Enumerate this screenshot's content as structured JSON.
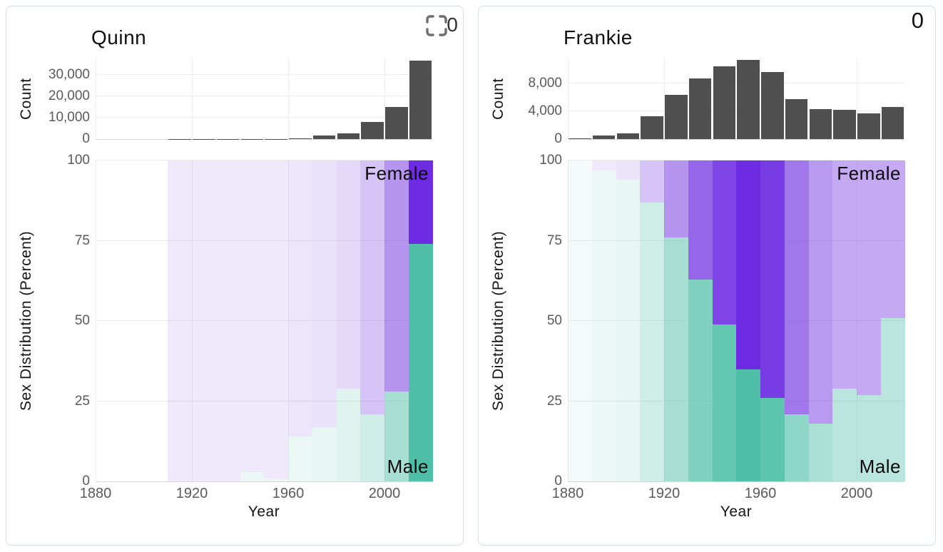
{
  "colors": {
    "female_base": "#6D2BE2",
    "male_base": "#4FBFA7",
    "hist_bar": "#4F4F4F",
    "grid": "#EBEBEB",
    "tick_text": "#5A5A5A",
    "label_text": "#141414"
  },
  "panels": [
    {
      "title": "Quinn",
      "badge_icon": "crop-marks-icon",
      "badge_text": "0",
      "count_label": "Count",
      "dist_label": "Sex Distribution (Percent)",
      "x_label": "Year",
      "female_label": "Female",
      "male_label": "Male"
    },
    {
      "title": "Frankie",
      "badge_icon": null,
      "badge_text": "0",
      "count_label": "Count",
      "dist_label": "Sex Distribution (Percent)",
      "x_label": "Year",
      "female_label": "Female",
      "male_label": "Male"
    }
  ],
  "chart_data": [
    {
      "panel": "Quinn",
      "type": "bar",
      "title": "Quinn — Count by decade",
      "ylabel": "Count",
      "x_domain": [
        1880,
        2020
      ],
      "bin_width_years": 10,
      "bin_starts": [
        1910,
        1920,
        1930,
        1940,
        1950,
        1960,
        1970,
        1980,
        1990,
        2000,
        2010
      ],
      "values": [
        30,
        40,
        60,
        120,
        150,
        500,
        1500,
        2700,
        8000,
        15000,
        36500
      ],
      "ylim": [
        0,
        37500
      ],
      "yticks": [
        0,
        10000,
        20000,
        30000
      ],
      "ytick_labels": [
        "0",
        "10,000",
        "20,000",
        "30,000"
      ],
      "xticks": [
        1880,
        1920,
        1960,
        2000
      ],
      "grid": true
    },
    {
      "panel": "Quinn",
      "type": "stacked-bar-normalized",
      "title": "Quinn — Sex Distribution (Percent)",
      "ylabel": "Sex Distribution (Percent)",
      "xlabel": "Year",
      "x_domain": [
        1880,
        2020
      ],
      "bin_width_years": 10,
      "bin_starts": [
        1910,
        1920,
        1930,
        1940,
        1950,
        1960,
        1970,
        1980,
        1990,
        2000,
        2010
      ],
      "series": [
        {
          "name": "Male",
          "position": "bottom",
          "values_pct": [
            0,
            0,
            0,
            3,
            1,
            14,
            17,
            29,
            21,
            28,
            74
          ]
        },
        {
          "name": "Female",
          "position": "top",
          "values_pct": [
            100,
            100,
            100,
            97,
            99,
            86,
            83,
            71,
            79,
            72,
            26
          ]
        }
      ],
      "bar_opacity_by_count": [
        0.1,
        0.1,
        0.1,
        0.1,
        0.1,
        0.12,
        0.14,
        0.18,
        0.28,
        0.5,
        1.0
      ],
      "ylim": [
        0,
        100
      ],
      "yticks": [
        0,
        25,
        50,
        75,
        100
      ],
      "ytick_labels": [
        "0",
        "25",
        "50",
        "75",
        "100"
      ],
      "xticks": [
        1880,
        1920,
        1960,
        2000
      ],
      "annotations": [
        {
          "text": "Female",
          "pos": "top-right"
        },
        {
          "text": "Male",
          "pos": "bottom-right"
        }
      ],
      "grid": true
    },
    {
      "panel": "Frankie",
      "type": "bar",
      "title": "Frankie — Count by decade",
      "ylabel": "Count",
      "x_domain": [
        1880,
        2020
      ],
      "bin_width_years": 10,
      "bin_starts": [
        1880,
        1890,
        1900,
        1910,
        1920,
        1930,
        1940,
        1950,
        1960,
        1970,
        1980,
        1990,
        2000,
        2010
      ],
      "values": [
        150,
        500,
        800,
        3300,
        6400,
        8700,
        10500,
        11400,
        9600,
        5800,
        4300,
        4200,
        3650,
        4600
      ],
      "ylim": [
        0,
        11600
      ],
      "yticks": [
        0,
        4000,
        8000
      ],
      "ytick_labels": [
        "0",
        "4,000",
        "8,000"
      ],
      "xticks": [
        1880,
        1920,
        1960,
        2000
      ],
      "grid": true
    },
    {
      "panel": "Frankie",
      "type": "stacked-bar-normalized",
      "title": "Frankie — Sex Distribution (Percent)",
      "ylabel": "Sex Distribution (Percent)",
      "xlabel": "Year",
      "x_domain": [
        1880,
        2020
      ],
      "bin_width_years": 10,
      "bin_starts": [
        1880,
        1890,
        1900,
        1910,
        1920,
        1930,
        1940,
        1950,
        1960,
        1970,
        1980,
        1990,
        2000,
        2010
      ],
      "series": [
        {
          "name": "Male",
          "position": "bottom",
          "values_pct": [
            100,
            97,
            94,
            87,
            76,
            63,
            49,
            35,
            26,
            21,
            18,
            29,
            27,
            51
          ]
        },
        {
          "name": "Female",
          "position": "top",
          "values_pct": [
            0,
            3,
            6,
            13,
            24,
            37,
            51,
            65,
            74,
            79,
            82,
            71,
            73,
            49
          ]
        }
      ],
      "bar_opacity_by_count": [
        0.07,
        0.1,
        0.13,
        0.28,
        0.5,
        0.72,
        0.88,
        1.0,
        0.92,
        0.64,
        0.48,
        0.4,
        0.4,
        0.4
      ],
      "ylim": [
        0,
        100
      ],
      "yticks": [
        0,
        25,
        50,
        75,
        100
      ],
      "ytick_labels": [
        "0",
        "25",
        "50",
        "75",
        "100"
      ],
      "xticks": [
        1880,
        1920,
        1960,
        2000
      ],
      "annotations": [
        {
          "text": "Female",
          "pos": "top-right"
        },
        {
          "text": "Male",
          "pos": "bottom-right"
        }
      ],
      "grid": true
    }
  ]
}
